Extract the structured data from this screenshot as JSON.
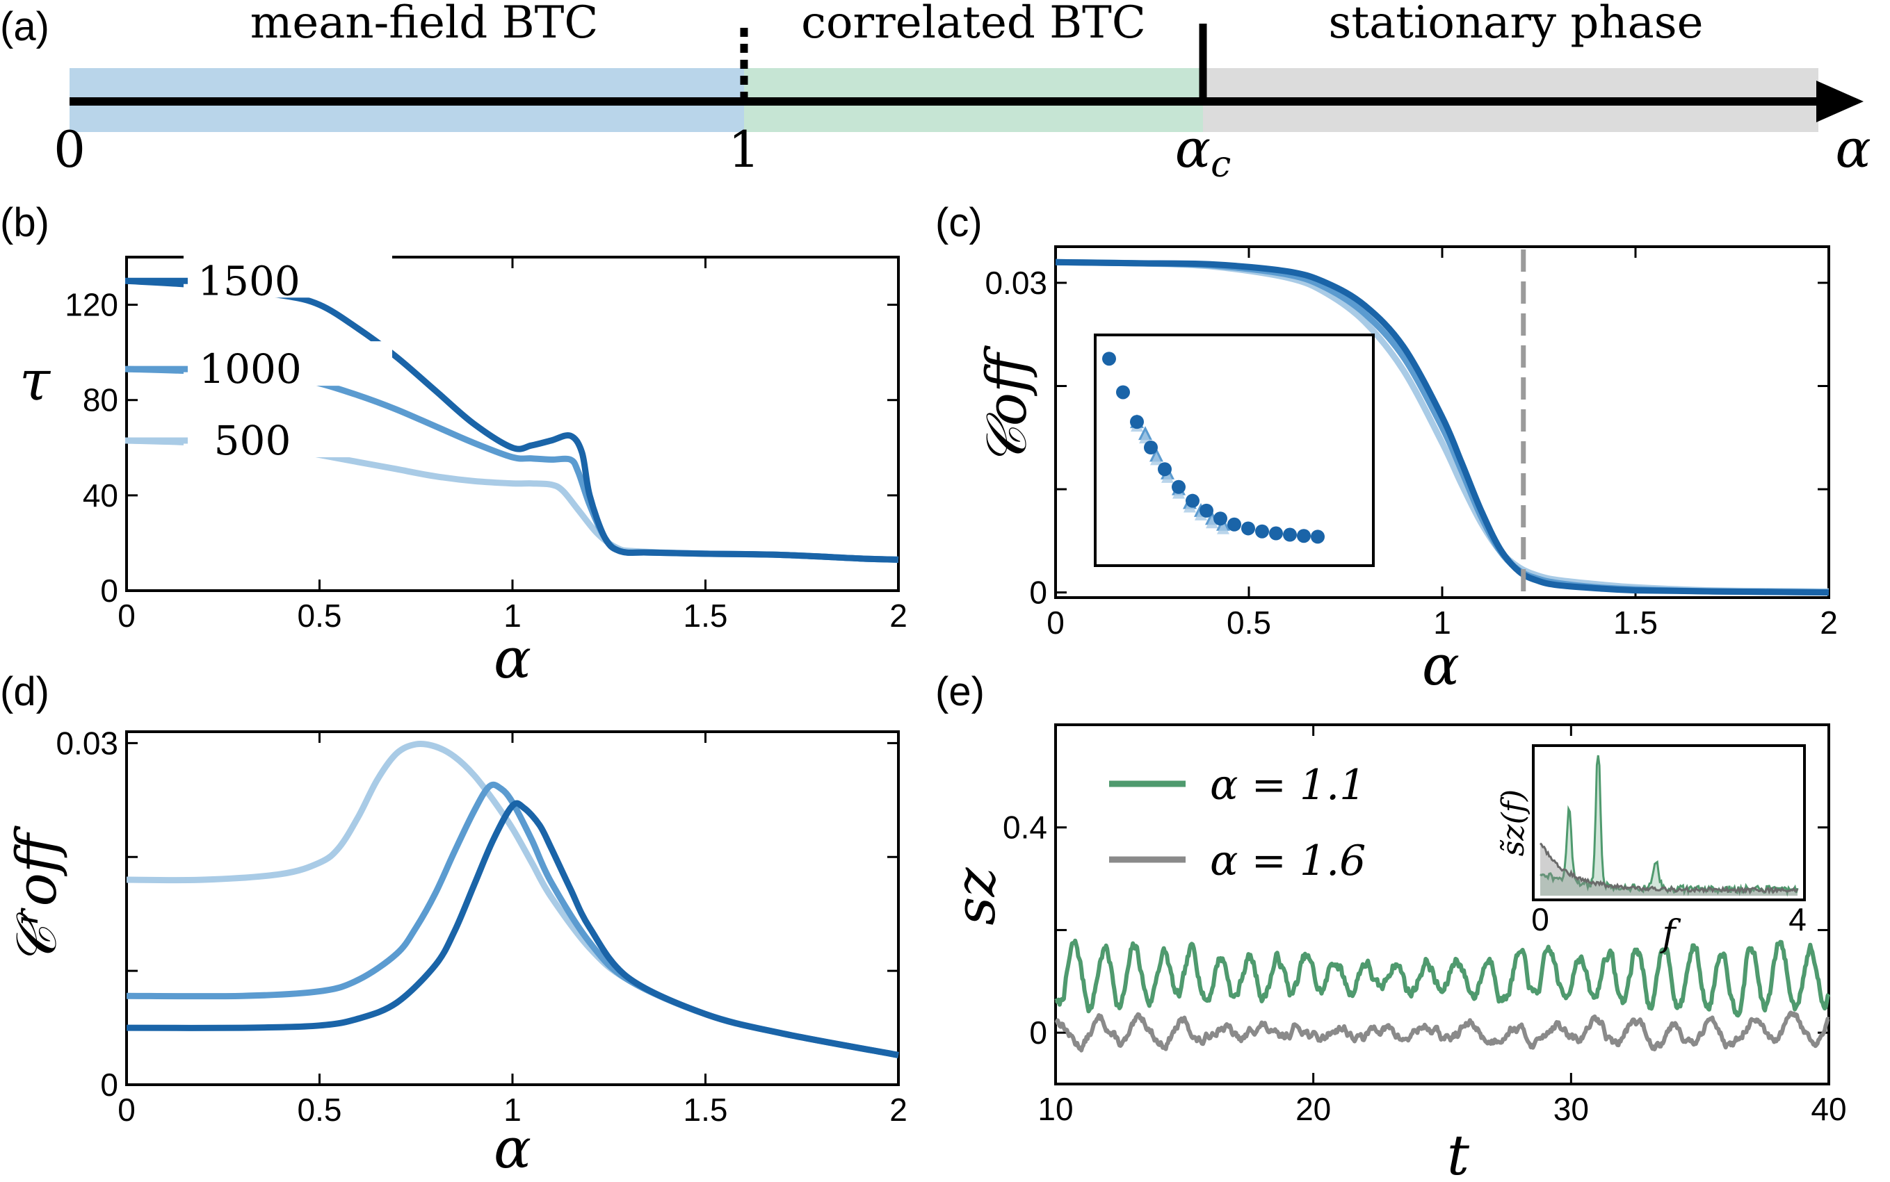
{
  "colors": {
    "dark_blue": "#1a64a8",
    "mid_blue": "#5b9bd0",
    "light_blue": "#a9cbe6",
    "green": "#4f9a6e",
    "gray": "#8a8a8a",
    "region_mf": "#b9d5ea",
    "region_corr": "#c6e5d4",
    "region_stat": "#dcdcdc",
    "ac_dash": "#9a9a9a"
  },
  "panel_labels": {
    "a": "(a)",
    "b": "(b)",
    "c": "(c)",
    "d": "(d)",
    "e": "(e)"
  },
  "chart_data": [
    {
      "panel": "(a)",
      "type": "phase-diagram",
      "regions": [
        {
          "label": "mean-field BTC",
          "from": "0",
          "to": "1"
        },
        {
          "label": "correlated BTC",
          "from": "1",
          "to": "αc"
        },
        {
          "label": "stationary phase",
          "from": "αc",
          "to": "∞"
        }
      ],
      "axis_labels": [
        "0",
        "1",
        "αc",
        "α"
      ]
    },
    {
      "panel": "(b)",
      "type": "line",
      "xlabel": "α",
      "ylabel": "τ",
      "xlim": [
        0,
        2
      ],
      "ylim": [
        0,
        140
      ],
      "xticks": [
        "0",
        "0.5",
        "1",
        "1.5",
        "2"
      ],
      "yticks": [
        "0",
        "40",
        "80",
        "120"
      ],
      "series": [
        {
          "name": "1500",
          "x": [
            0,
            0.2,
            0.4,
            0.5,
            0.6,
            0.7,
            0.8,
            0.9,
            1.0,
            1.05,
            1.1,
            1.15,
            1.18,
            1.2,
            1.24,
            1.28,
            1.35,
            1.5,
            1.7,
            1.9,
            2.0
          ],
          "y": [
            130,
            128,
            124,
            120,
            110,
            98,
            84,
            70,
            60,
            61,
            63,
            65,
            58,
            40,
            22,
            16.5,
            16,
            15.5,
            15,
            13.5,
            13
          ]
        },
        {
          "name": "1000",
          "x": [
            0,
            0.2,
            0.4,
            0.5,
            0.6,
            0.7,
            0.8,
            0.9,
            1.0,
            1.05,
            1.1,
            1.15,
            1.17,
            1.2,
            1.24,
            1.28,
            1.35,
            1.5,
            1.7,
            1.9,
            2.0
          ],
          "y": [
            93,
            92,
            90,
            87,
            82,
            76,
            69,
            62,
            56,
            55.5,
            55,
            55,
            50,
            36,
            22,
            16.5,
            16,
            15.5,
            15,
            13.5,
            13
          ]
        },
        {
          "name": "500",
          "x": [
            0,
            0.2,
            0.4,
            0.5,
            0.6,
            0.7,
            0.8,
            0.9,
            1.0,
            1.05,
            1.1,
            1.13,
            1.17,
            1.22,
            1.27,
            1.32,
            1.5,
            1.7,
            1.9,
            2.0
          ],
          "y": [
            63,
            62,
            60,
            57,
            54,
            51,
            48,
            46,
            45,
            45,
            44.5,
            42,
            34,
            24,
            18,
            16.5,
            15.5,
            15,
            13.5,
            13
          ]
        }
      ]
    },
    {
      "panel": "(c)",
      "type": "line",
      "xlabel": "α",
      "ylabel": "𝒞off",
      "xlim": [
        0,
        2
      ],
      "ylim": [
        -0.0005,
        0.0335
      ],
      "xticks": [
        "0",
        "0.5",
        "1",
        "1.5",
        "2"
      ],
      "yticks": [
        "0",
        "0.03"
      ],
      "alpha_c": 1.21,
      "series": [
        {
          "name": "500",
          "x": [
            0,
            0.2,
            0.4,
            0.6,
            0.7,
            0.8,
            0.9,
            1.0,
            1.05,
            1.1,
            1.15,
            1.2,
            1.25,
            1.3,
            1.4,
            1.5,
            1.7,
            2.0
          ],
          "y": [
            0.032,
            0.0319,
            0.0316,
            0.0305,
            0.029,
            0.0262,
            0.0215,
            0.0145,
            0.0105,
            0.0068,
            0.004,
            0.0024,
            0.0016,
            0.0012,
            0.0008,
            0.0005,
            0.0002,
            0.0001
          ]
        },
        {
          "name": "1000",
          "x": [
            0,
            0.2,
            0.4,
            0.6,
            0.7,
            0.8,
            0.9,
            1.0,
            1.05,
            1.1,
            1.15,
            1.2,
            1.25,
            1.3,
            1.4,
            1.5,
            1.7,
            2.0
          ],
          "y": [
            0.032,
            0.0319,
            0.0317,
            0.0308,
            0.0295,
            0.027,
            0.0228,
            0.016,
            0.0118,
            0.0074,
            0.004,
            0.0021,
            0.0013,
            0.0009,
            0.0005,
            0.0003,
            0.0001,
            0.0
          ]
        },
        {
          "name": "1500",
          "x": [
            0,
            0.2,
            0.4,
            0.6,
            0.7,
            0.8,
            0.9,
            1.0,
            1.05,
            1.1,
            1.15,
            1.2,
            1.25,
            1.3,
            1.4,
            1.5,
            1.7,
            2.0
          ],
          "y": [
            0.032,
            0.0319,
            0.0318,
            0.0311,
            0.03,
            0.0278,
            0.0238,
            0.017,
            0.0126,
            0.008,
            0.0042,
            0.002,
            0.0011,
            0.0007,
            0.0004,
            0.0002,
            0.0001,
            0.0
          ]
        }
      ],
      "inset": {
        "type": "scatter",
        "x": [
          0.05,
          0.1,
          0.15,
          0.2,
          0.25,
          0.3,
          0.35,
          0.4,
          0.45,
          0.5,
          0.55,
          0.6,
          0.65,
          0.7,
          0.75,
          0.8
        ],
        "y": [
          0.95,
          0.78,
          0.63,
          0.5,
          0.39,
          0.3,
          0.23,
          0.18,
          0.14,
          0.11,
          0.09,
          0.075,
          0.065,
          0.058,
          0.052,
          0.048
        ],
        "triangles_x": [
          0.15,
          0.18,
          0.22,
          0.26,
          0.3,
          0.34,
          0.38,
          0.42,
          0.46
        ],
        "triangles_y": [
          0.63,
          0.57,
          0.46,
          0.37,
          0.29,
          0.22,
          0.18,
          0.14,
          0.11
        ]
      }
    },
    {
      "panel": "(d)",
      "type": "line",
      "xlabel": "α",
      "ylabel": "𝒞ʳoff",
      "xlim": [
        0,
        2
      ],
      "ylim": [
        0,
        0.031
      ],
      "xticks": [
        "0",
        "0.5",
        "1",
        "1.5",
        "2"
      ],
      "yticks": [
        "0",
        "0.03"
      ],
      "series": [
        {
          "name": "500",
          "x": [
            0,
            0.2,
            0.4,
            0.5,
            0.55,
            0.6,
            0.65,
            0.7,
            0.75,
            0.8,
            0.85,
            0.9,
            0.95,
            1.0,
            1.05,
            1.1,
            1.2,
            1.3,
            1.5,
            1.7,
            2.0
          ],
          "y": [
            0.018,
            0.018,
            0.0185,
            0.0195,
            0.0208,
            0.0235,
            0.0268,
            0.0291,
            0.0299,
            0.0297,
            0.0288,
            0.0272,
            0.025,
            0.0225,
            0.0195,
            0.0165,
            0.012,
            0.0092,
            0.0062,
            0.0045,
            0.0026
          ]
        },
        {
          "name": "1000",
          "x": [
            0,
            0.3,
            0.5,
            0.6,
            0.7,
            0.75,
            0.8,
            0.85,
            0.9,
            0.94,
            0.97,
            1.0,
            1.05,
            1.1,
            1.2,
            1.3,
            1.5,
            1.7,
            2.0
          ],
          "y": [
            0.0078,
            0.0078,
            0.0082,
            0.0092,
            0.0115,
            0.0138,
            0.0168,
            0.0205,
            0.024,
            0.0262,
            0.026,
            0.0248,
            0.0215,
            0.0178,
            0.0125,
            0.0092,
            0.0062,
            0.0045,
            0.0026
          ]
        },
        {
          "name": "1500",
          "x": [
            0,
            0.3,
            0.5,
            0.6,
            0.7,
            0.8,
            0.85,
            0.9,
            0.95,
            1.0,
            1.03,
            1.07,
            1.1,
            1.15,
            1.2,
            1.3,
            1.5,
            1.7,
            2.0
          ],
          "y": [
            0.005,
            0.005,
            0.0052,
            0.0058,
            0.0072,
            0.0105,
            0.0135,
            0.0175,
            0.0215,
            0.0245,
            0.0243,
            0.0228,
            0.0208,
            0.0172,
            0.0138,
            0.0094,
            0.0062,
            0.0045,
            0.0026
          ]
        }
      ]
    },
    {
      "panel": "(e)",
      "type": "line",
      "xlabel": "t",
      "ylabel": "sz",
      "xlim": [
        10,
        40
      ],
      "ylim": [
        -0.1,
        0.6
      ],
      "xticks": [
        "10",
        "20",
        "30",
        "40"
      ],
      "yticks": [
        "0",
        "0.4"
      ],
      "series": [
        {
          "name": "α = 1.1",
          "color_key": "green",
          "mean": 0.11,
          "amplitude": 0.06,
          "period": 1.15,
          "seed": 7
        },
        {
          "name": "α = 1.6",
          "color_key": "gray",
          "mean": 0.0,
          "amplitude": 0.025,
          "period": 1.6,
          "seed": 13
        }
      ],
      "inset": {
        "xlabel": "f",
        "ylabel": "s̃z(f)",
        "xticks": [
          "0",
          "4"
        ],
        "xlim": [
          0,
          4
        ]
      }
    }
  ],
  "panel_a": {
    "label_mf": "mean-field BTC",
    "label_corr": "correlated BTC",
    "label_stat": "stationary phase",
    "tick_0": "0",
    "tick_1": "1",
    "tick_ac_main": "α",
    "tick_ac_sub": "c",
    "tick_alpha": "α"
  },
  "panel_b": {
    "legend": [
      "1500",
      "1000",
      "500"
    ]
  },
  "panel_e": {
    "legend": [
      "α = 1.1",
      "α = 1.6"
    ]
  }
}
